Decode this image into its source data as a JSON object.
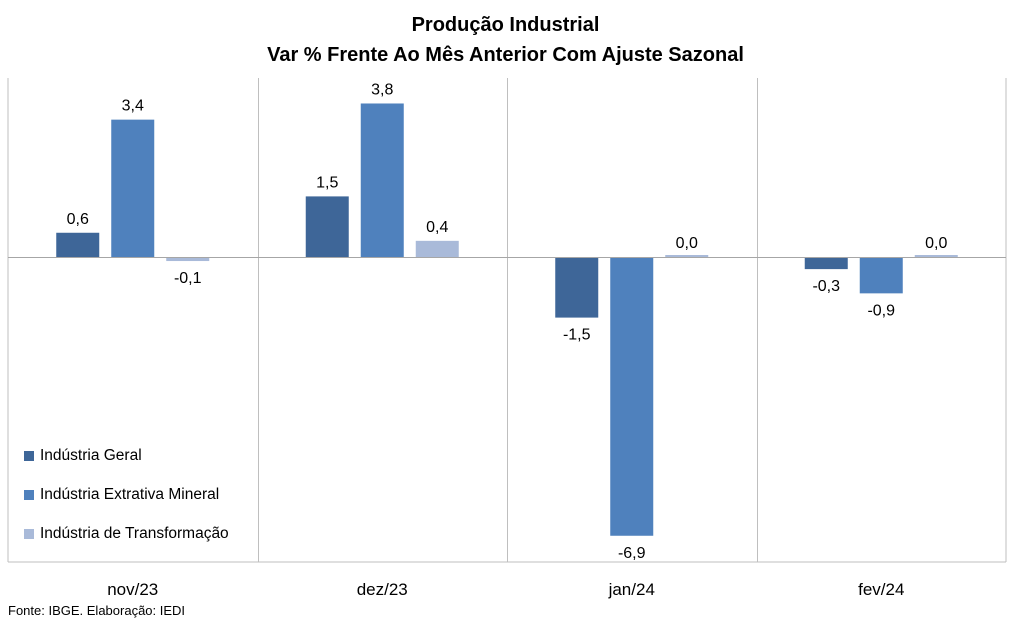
{
  "chart_data": {
    "type": "bar",
    "title": "Produção Industrial",
    "subtitle": "Var % Frente Ao Mês Anterior Com Ajuste Sazonal",
    "categories": [
      "nov/23",
      "dez/23",
      "jan/24",
      "fev/24"
    ],
    "series": [
      {
        "name": "Indústria Geral",
        "color": "#3E6698",
        "values": [
          0.6,
          1.5,
          -1.5,
          -0.3
        ]
      },
      {
        "name": "Indústria Extrativa Mineral",
        "color": "#4F81BD",
        "values": [
          3.4,
          3.8,
          -6.9,
          -0.9
        ]
      },
      {
        "name": "Indústria de Transformação",
        "color": "#A9BAD9",
        "values": [
          -0.1,
          0.4,
          0.0,
          0.0
        ]
      }
    ],
    "data_labels": [
      [
        "0,6",
        "1,5",
        "-1,5",
        "-0,3"
      ],
      [
        "3,4",
        "3,8",
        "-6,9",
        "-0,9"
      ],
      [
        "-0,1",
        "0,4",
        "0,0",
        "0,0"
      ]
    ],
    "ylim": [
      -7.5,
      4.2
    ],
    "legend_position": "bottom-left",
    "grid": false,
    "category_separators": true
  },
  "source": "Fonte: IBGE. Elaboração: IEDI"
}
